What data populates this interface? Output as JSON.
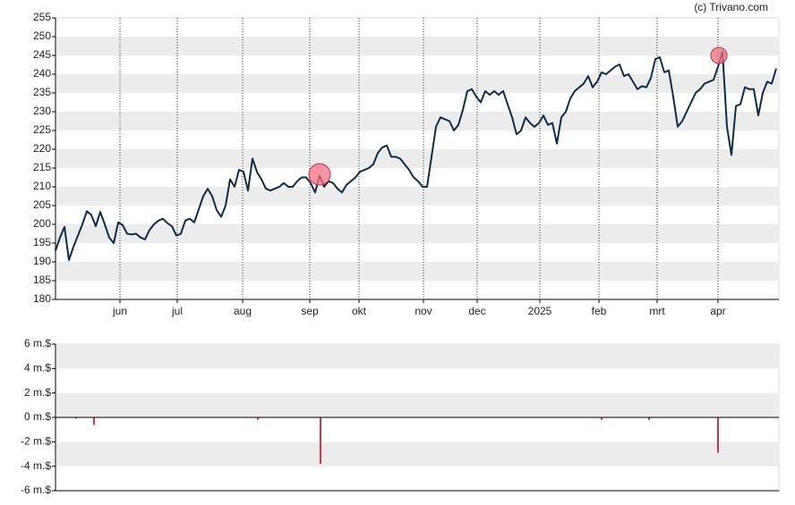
{
  "chart_data": [
    {
      "type": "line",
      "source": "(c) Trivano.com",
      "series": [
        {
          "color": "#0e2c4a",
          "values": [
            193.0,
            196.5,
            199.3,
            190.5,
            194.0,
            197.0,
            200.0,
            203.5,
            202.5,
            199.5,
            203.3,
            200.0,
            196.5,
            195.0,
            200.5,
            199.8,
            197.5,
            197.3,
            197.5,
            196.5,
            196.0,
            198.5,
            200.0,
            201.0,
            201.5,
            200.3,
            199.5,
            197.0,
            197.5,
            201.0,
            201.5,
            200.5,
            204.0,
            207.5,
            209.5,
            207.5,
            203.8,
            202.0,
            205.0,
            212.0,
            210.0,
            214.5,
            214.0,
            209.0,
            217.5,
            214.0,
            212.0,
            209.5,
            209.0,
            209.5,
            210.0,
            211.0,
            210.0,
            210.0,
            211.5,
            212.5,
            212.5,
            211.0,
            208.5,
            213.0,
            210.0,
            211.5,
            211.0,
            209.5,
            208.5,
            210.5,
            211.5,
            212.5,
            214.0,
            214.5,
            215.0,
            216.0,
            219.0,
            220.5,
            221.0,
            218.0,
            218.0,
            217.5,
            216.0,
            214.5,
            212.5,
            211.5,
            210.0,
            210.0,
            218.0,
            226.0,
            228.5,
            228.0,
            227.5,
            225.0,
            226.5,
            230.5,
            235.5,
            236.0,
            234.0,
            232.5,
            235.5,
            234.5,
            235.5,
            234.5,
            235.5,
            232.0,
            228.5,
            224.0,
            225.0,
            228.5,
            227.0,
            226.0,
            227.0,
            229.0,
            226.5,
            227.0,
            221.5,
            228.5,
            230.0,
            233.5,
            235.5,
            236.5,
            237.5,
            239.5,
            236.5,
            238.0,
            240.5,
            240.0,
            241.0,
            242.0,
            242.6,
            239.5,
            240.0,
            238.0,
            236.0,
            236.8,
            236.5,
            239.0,
            244.0,
            244.5,
            240.5,
            241.0,
            234.0,
            226.0,
            227.5,
            230.0,
            232.5,
            235.0,
            236.0,
            237.5,
            238.0,
            238.5,
            242.0,
            246.0,
            226.0,
            218.5,
            231.5,
            232.0,
            236.5,
            236.0,
            236.0,
            229.0,
            235.0,
            238.0,
            237.5,
            241.5
          ]
        }
      ],
      "highlights": {
        "color": "#f0707f",
        "x": [
          59,
          148.2
        ],
        "values": [
          213.3,
          245
        ]
      },
      "xlim": [
        0,
        161.6
      ],
      "ylim": [
        180,
        255
      ],
      "yticks": [
        180,
        185,
        190,
        195,
        200,
        205,
        210,
        215,
        220,
        225,
        230,
        235,
        240,
        245,
        250,
        255
      ],
      "xticks": [
        {
          "value": 14.4,
          "label": "jun"
        },
        {
          "value": 27.2,
          "label": "jul"
        },
        {
          "value": 41.8,
          "label": "aug"
        },
        {
          "value": 56.8,
          "label": "sep"
        },
        {
          "value": 67.8,
          "label": "okt"
        },
        {
          "value": 82.2,
          "label": "nov"
        },
        {
          "value": 94.2,
          "label": "dec"
        },
        {
          "value": 108.2,
          "label": "2025"
        },
        {
          "value": 121.4,
          "label": "feb"
        },
        {
          "value": 134.4,
          "label": "mrt"
        },
        {
          "value": 148,
          "label": "apr"
        }
      ],
      "grid": "bands"
    },
    {
      "type": "bar",
      "color": "#d9304a",
      "x": [
        4.6,
        8.6,
        45.2,
        59.2,
        122,
        132.6,
        148
      ],
      "values": [
        -0.1,
        -0.6,
        -0.2,
        -3.8,
        -0.2,
        -0.2,
        -2.9
      ],
      "xlim": [
        0,
        161.6
      ],
      "ylim": [
        -6,
        6
      ],
      "yticks": [
        {
          "value": -6,
          "label": "-6 m.$"
        },
        {
          "value": -4,
          "label": "-4 m.$"
        },
        {
          "value": -2,
          "label": "-2 m.$"
        },
        {
          "value": 0,
          "label": "0 m.$"
        },
        {
          "value": 2,
          "label": "2 m.$"
        },
        {
          "value": 4,
          "label": "4 m.$"
        },
        {
          "value": 6,
          "label": "6 m.$"
        }
      ],
      "grid": "bands"
    }
  ]
}
